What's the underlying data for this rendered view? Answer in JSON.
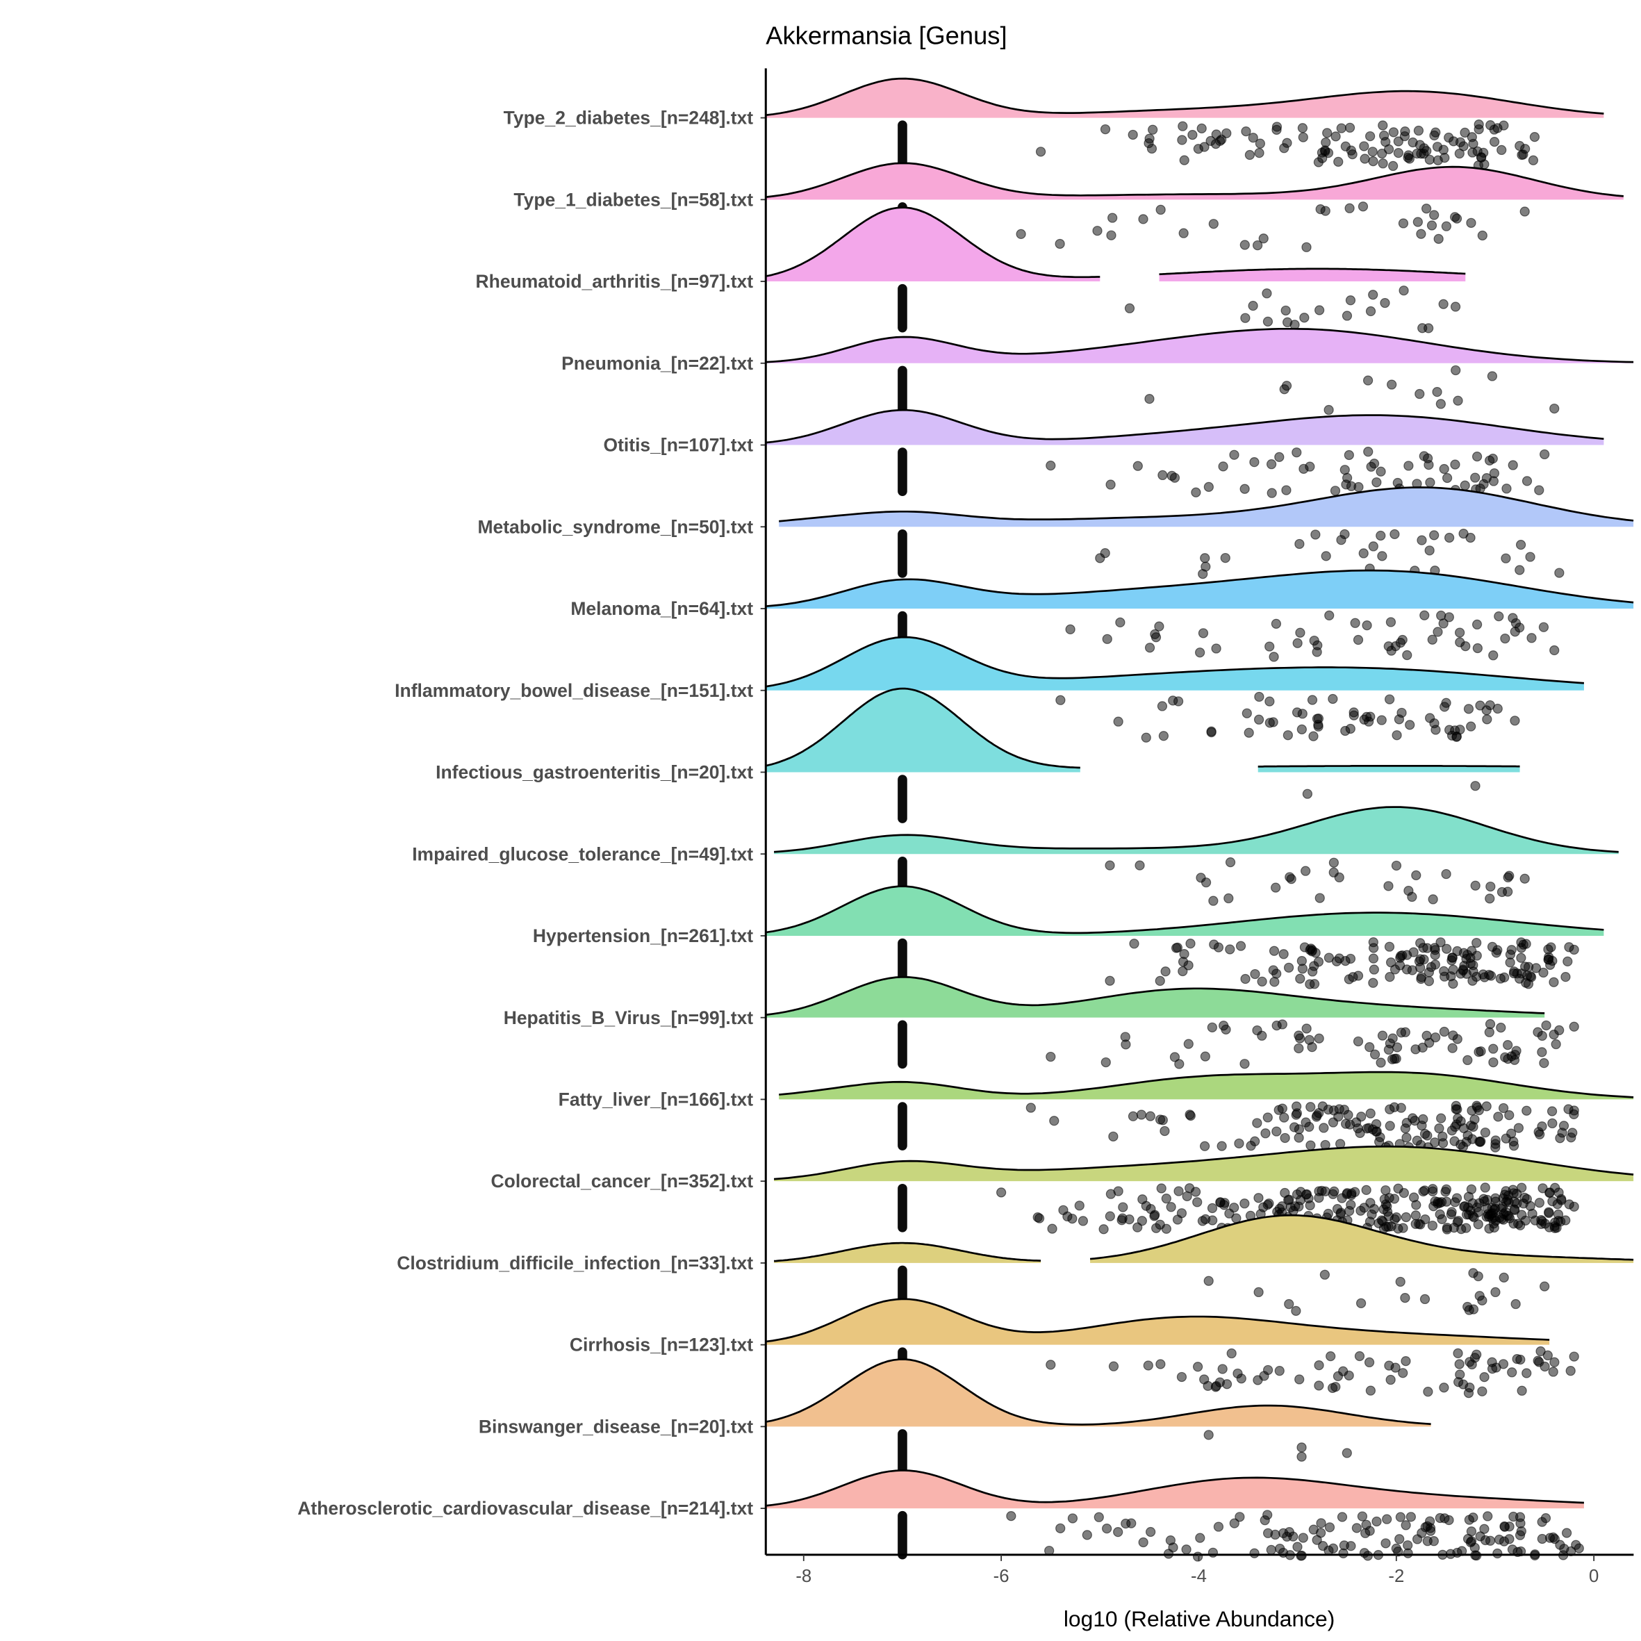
{
  "chart_data": {
    "type": "ridgeline-density-with-jittered-points",
    "title": "Akkermansia [Genus]",
    "xlabel": "log10 (Relative Abundance)",
    "ylabel": "",
    "xlim": [
      -8.38,
      0.4
    ],
    "xticks": [
      -8,
      -6,
      -4,
      -2,
      0
    ],
    "xtick_labels": [
      "-8",
      "-6",
      "-4",
      "-2",
      "0"
    ],
    "zero_value_position": -7,
    "grid": false,
    "legend": "none",
    "density_note": "density curves given as gaussian components (mean, sd, relative height) over listed x segments",
    "groups": [
      {
        "label": "Type_2_diabetes_[n=248].txt",
        "n": 248,
        "color": "#F9B2C9",
        "segments": [
          [
            -8.38,
            0.1
          ]
        ],
        "components": [
          [
            -7,
            0.6,
            0.37
          ],
          [
            -1.8,
            1.0,
            0.24
          ],
          [
            -4,
            1.2,
            0.07
          ]
        ],
        "nonzero_count": 110,
        "nonzero_range": [
          -5.6,
          -0.6
        ]
      },
      {
        "label": "Type_1_diabetes_[n=58].txt",
        "n": 58,
        "color": "#F8A8D7",
        "segments": [
          [
            -8.38,
            0.3
          ]
        ],
        "components": [
          [
            -7,
            0.6,
            0.34
          ],
          [
            -1.4,
            0.8,
            0.3
          ],
          [
            -4,
            1.5,
            0.05
          ]
        ],
        "nonzero_count": 30,
        "nonzero_range": [
          -5.8,
          -0.7
        ]
      },
      {
        "label": "Rheumatoid_arthritis_[n=97].txt",
        "n": 97,
        "color": "#F3A7EA",
        "segments": [
          [
            -8.38,
            -5.0
          ],
          [
            -4.4,
            -1.3
          ]
        ],
        "components": [
          [
            -7,
            0.6,
            0.7
          ],
          [
            -2.8,
            1.5,
            0.12
          ]
        ],
        "nonzero_count": 20,
        "nonzero_range": [
          -4.7,
          -1.4
        ]
      },
      {
        "label": "Pneumonia_[n=22].txt",
        "n": 22,
        "color": "#E6B2F6",
        "segments": [
          [
            -8.38,
            0.4
          ]
        ],
        "components": [
          [
            -7,
            0.55,
            0.24
          ],
          [
            -3.0,
            1.3,
            0.32
          ],
          [
            -5,
            1,
            0.05
          ]
        ],
        "nonzero_count": 13,
        "nonzero_range": [
          -4.5,
          -0.4
        ]
      },
      {
        "label": "Otitis_[n=107].txt",
        "n": 107,
        "color": "#D6BEF9",
        "segments": [
          [
            -8.38,
            0.1
          ]
        ],
        "components": [
          [
            -7,
            0.6,
            0.33
          ],
          [
            -2.2,
            1.3,
            0.28
          ],
          [
            -4.5,
            1,
            0.05
          ]
        ],
        "nonzero_count": 60,
        "nonzero_range": [
          -5.5,
          -0.5
        ]
      },
      {
        "label": "Metabolic_syndrome_[n=50].txt",
        "n": 50,
        "color": "#B2C8F9",
        "segments": [
          [
            -8.25,
            0.4
          ]
        ],
        "components": [
          [
            -7,
            0.6,
            0.12
          ],
          [
            -1.7,
            1.1,
            0.36
          ],
          [
            -4.5,
            1.5,
            0.08
          ],
          [
            -8,
            0.5,
            0.04
          ]
        ],
        "nonzero_count": 30,
        "nonzero_range": [
          -5.0,
          -0.35
        ]
      },
      {
        "label": "Melanoma_[n=64].txt",
        "n": 64,
        "color": "#7ECFF7",
        "segments": [
          [
            -8.38,
            0.4
          ]
        ],
        "components": [
          [
            -7,
            0.6,
            0.24
          ],
          [
            -2,
            1.3,
            0.32
          ],
          [
            -4.5,
            1.5,
            0.15
          ]
        ],
        "nonzero_count": 50,
        "nonzero_range": [
          -5.3,
          -0.4
        ]
      },
      {
        "label": "Inflammatory_bowel_disease_[n=151].txt",
        "n": 151,
        "color": "#77D8EE",
        "segments": [
          [
            -8.38,
            -0.1
          ]
        ],
        "components": [
          [
            -7,
            0.6,
            0.48
          ],
          [
            -2.2,
            1.5,
            0.18
          ],
          [
            -4.5,
            1.5,
            0.1
          ]
        ],
        "nonzero_count": 60,
        "nonzero_range": [
          -5.4,
          -0.8
        ]
      },
      {
        "label": "Infectious_gastroenteritis_[n=20].txt",
        "n": 20,
        "color": "#7EDEDE",
        "segments": [
          [
            -8.38,
            -5.2
          ],
          [
            -3.4,
            -0.75
          ]
        ],
        "components": [
          [
            -7,
            0.6,
            0.78
          ],
          [
            -2,
            3,
            0.06
          ]
        ],
        "nonzero_count": 2,
        "nonzero_range": [
          -2.9,
          -1.2
        ]
      },
      {
        "label": "Impaired_glucose_tolerance_[n=49].txt",
        "n": 49,
        "color": "#82E0CB",
        "segments": [
          [
            -8.3,
            0.25
          ]
        ],
        "components": [
          [
            -7,
            0.6,
            0.16
          ],
          [
            -2,
            0.9,
            0.44
          ],
          [
            -5,
            1.5,
            0.05
          ]
        ],
        "nonzero_count": 30,
        "nonzero_range": [
          -4.9,
          -0.7
        ]
      },
      {
        "label": "Hypertension_[n=261].txt",
        "n": 261,
        "color": "#82DFB2",
        "segments": [
          [
            -8.38,
            0.1
          ]
        ],
        "components": [
          [
            -7,
            0.6,
            0.47
          ],
          [
            -2.2,
            1.4,
            0.22
          ]
        ],
        "nonzero_count": 150,
        "nonzero_range": [
          -4.9,
          -0.2
        ]
      },
      {
        "label": "Hepatitis_B_Virus_[n=99].txt",
        "n": 99,
        "color": "#8DDB98",
        "segments": [
          [
            -8.38,
            -0.5
          ]
        ],
        "components": [
          [
            -7,
            0.6,
            0.38
          ],
          [
            -4.2,
            1.0,
            0.22
          ],
          [
            -2.5,
            1.5,
            0.1
          ]
        ],
        "nonzero_count": 70,
        "nonzero_range": [
          -5.5,
          -0.2
        ]
      },
      {
        "label": "Fatty_liver_[n=166].txt",
        "n": 166,
        "color": "#ABD77E",
        "segments": [
          [
            -8.25,
            0.4
          ]
        ],
        "components": [
          [
            -7,
            0.6,
            0.16
          ],
          [
            -3.9,
            1.0,
            0.2
          ],
          [
            -1.8,
            1.0,
            0.23
          ],
          [
            -8,
            0.5,
            0.03
          ]
        ],
        "nonzero_count": 140,
        "nonzero_range": [
          -5.7,
          -0.2
        ]
      },
      {
        "label": "Colorectal_cancer_[n=352].txt",
        "n": 352,
        "color": "#C8D67E",
        "segments": [
          [
            -8.3,
            0.4
          ]
        ],
        "components": [
          [
            -7,
            0.6,
            0.16
          ],
          [
            -1.9,
            1.3,
            0.3
          ],
          [
            -4.5,
            1.5,
            0.12
          ]
        ],
        "nonzero_count": 280,
        "nonzero_range": [
          -6.0,
          -0.2
        ]
      },
      {
        "label": "Clostridium_difficile_infection_[n=33].txt",
        "n": 33,
        "color": "#DDD07E",
        "segments": [
          [
            -8.3,
            -5.6
          ],
          [
            -5.1,
            0.4
          ]
        ],
        "components": [
          [
            -7,
            0.6,
            0.19
          ],
          [
            -3.1,
            0.9,
            0.44
          ],
          [
            -1,
            1.2,
            0.06
          ]
        ],
        "nonzero_count": 20,
        "nonzero_range": [
          -3.9,
          -0.5
        ]
      },
      {
        "label": "Cirrhosis_[n=123].txt",
        "n": 123,
        "color": "#E9C67F",
        "segments": [
          [
            -8.38,
            -0.45
          ]
        ],
        "components": [
          [
            -7,
            0.6,
            0.43
          ],
          [
            -4.2,
            1.0,
            0.22
          ],
          [
            -2.3,
            1.5,
            0.1
          ]
        ],
        "nonzero_count": 70,
        "nonzero_range": [
          -5.5,
          -0.2
        ]
      },
      {
        "label": "Binswanger_disease_[n=20].txt",
        "n": 20,
        "color": "#F1C08F",
        "segments": [
          [
            -8.38,
            -1.65
          ]
        ],
        "components": [
          [
            -7,
            0.6,
            0.64
          ],
          [
            -3.3,
            0.8,
            0.2
          ]
        ],
        "nonzero_count": 4,
        "nonzero_range": [
          -3.9,
          -2.5
        ]
      },
      {
        "label": "Atherosclerotic_cardiovascular_disease_[n=214].txt",
        "n": 214,
        "color": "#F9B4AE",
        "segments": [
          [
            -8.38,
            -0.1
          ]
        ],
        "components": [
          [
            -7,
            0.6,
            0.36
          ],
          [
            -3.6,
            1.0,
            0.24
          ],
          [
            -1.8,
            1.5,
            0.1
          ]
        ],
        "nonzero_count": 130,
        "nonzero_range": [
          -5.9,
          -0.15
        ]
      }
    ]
  }
}
